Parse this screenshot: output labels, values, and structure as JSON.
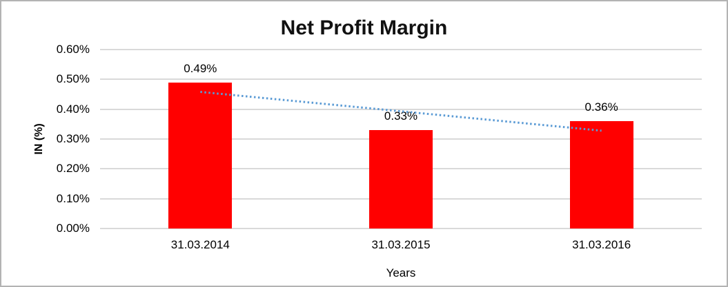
{
  "chart_data": {
    "type": "bar",
    "title": "Net Profit Margin",
    "xlabel": "Years",
    "ylabel": "IN (%)",
    "categories": [
      "31.03.2014",
      "31.03.2015",
      "31.03.2016"
    ],
    "values": [
      0.49,
      0.33,
      0.36
    ],
    "data_labels": [
      "0.49%",
      "0.33%",
      "0.36%"
    ],
    "ylim": [
      0,
      0.6
    ],
    "ytick_step": 0.1,
    "ytick_labels": [
      "0.60%",
      "0.50%",
      "0.40%",
      "0.30%",
      "0.20%",
      "0.10%",
      "0.00%"
    ],
    "grid": true,
    "legend": "none",
    "trendline": {
      "type": "linear",
      "style": "dotted",
      "start_value": 0.458,
      "end_value": 0.328
    }
  },
  "colors": {
    "bar": "#ff0000",
    "trendline": "#5b9bd5",
    "gridline": "#d9d9d9",
    "frame_border": "#b3b3b3",
    "background": "#ffffff",
    "text": "#000000"
  }
}
